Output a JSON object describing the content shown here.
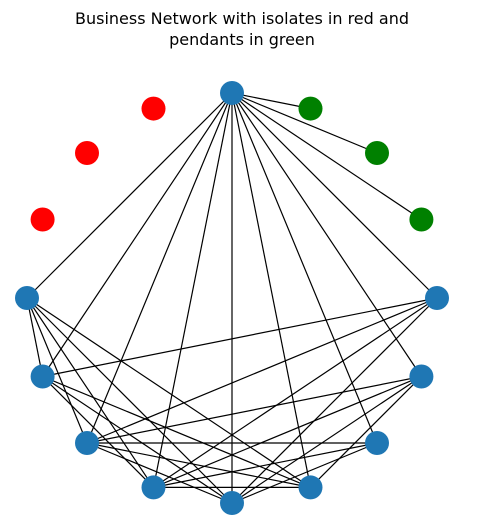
{
  "title": {
    "line1": "Business Network with isolates in red and",
    "line2": "pendants in green"
  },
  "colors": {
    "edge": "#000000",
    "node_default": "#1f77b4",
    "node_isolate": "#ff0000",
    "node_pendant": "#008000",
    "background": "#ffffff"
  },
  "graph": {
    "layout": "circular",
    "node_count": 16,
    "nodes": [
      {
        "id": 0,
        "role": "hub"
      },
      {
        "id": 1,
        "role": "pendant"
      },
      {
        "id": 2,
        "role": "pendant"
      },
      {
        "id": 3,
        "role": "pendant"
      },
      {
        "id": 4,
        "role": "default"
      },
      {
        "id": 5,
        "role": "default"
      },
      {
        "id": 6,
        "role": "default"
      },
      {
        "id": 7,
        "role": "default"
      },
      {
        "id": 8,
        "role": "default"
      },
      {
        "id": 9,
        "role": "default"
      },
      {
        "id": 10,
        "role": "default"
      },
      {
        "id": 11,
        "role": "default"
      },
      {
        "id": 12,
        "role": "default"
      },
      {
        "id": 13,
        "role": "isolate"
      },
      {
        "id": 14,
        "role": "isolate"
      },
      {
        "id": 15,
        "role": "isolate"
      }
    ],
    "edges": [
      [
        0,
        1
      ],
      [
        0,
        2
      ],
      [
        0,
        3
      ],
      [
        0,
        4
      ],
      [
        0,
        5
      ],
      [
        0,
        6
      ],
      [
        0,
        7
      ],
      [
        0,
        8
      ],
      [
        0,
        9
      ],
      [
        0,
        10
      ],
      [
        0,
        11
      ],
      [
        0,
        12
      ],
      [
        4,
        8
      ],
      [
        4,
        9
      ],
      [
        4,
        10
      ],
      [
        4,
        11
      ],
      [
        5,
        7
      ],
      [
        5,
        8
      ],
      [
        5,
        9
      ],
      [
        5,
        10
      ],
      [
        6,
        8
      ],
      [
        6,
        9
      ],
      [
        6,
        10
      ],
      [
        7,
        9
      ],
      [
        7,
        10
      ],
      [
        7,
        11
      ],
      [
        7,
        12
      ],
      [
        8,
        10
      ],
      [
        8,
        11
      ],
      [
        8,
        12
      ],
      [
        9,
        11
      ],
      [
        9,
        12
      ],
      [
        10,
        12
      ],
      [
        11,
        12
      ]
    ]
  }
}
